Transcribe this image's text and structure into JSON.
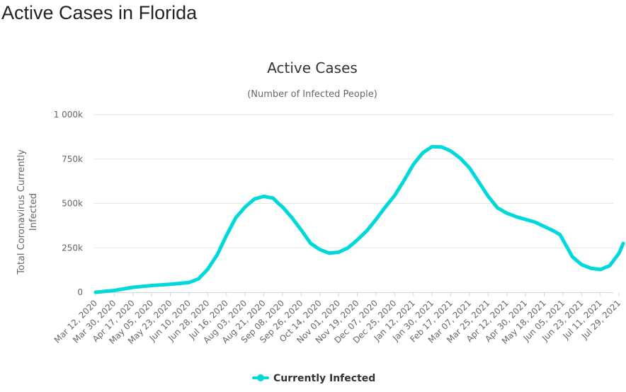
{
  "page": {
    "heading": "Active Cases in Florida"
  },
  "colors": {
    "series": "#00d9d9",
    "grid": "#e6e6e6",
    "axis_line": "#ccd6eb",
    "text": "#333333",
    "tick_text": "#666666"
  },
  "chart_data": {
    "type": "line",
    "title": "Active Cases",
    "subtitle": "(Number of Infected People)",
    "ylabel": "Total Coronavirus Currently Infected",
    "xlabel": "",
    "ylim": [
      0,
      1000000
    ],
    "yticks": [
      0,
      250000,
      500000,
      750000,
      1000000
    ],
    "ytick_labels": [
      "0",
      "250k",
      "500k",
      "750k",
      "1 000k"
    ],
    "x_tick_labels": [
      "Mar 12, 2020",
      "Mar 30, 2020",
      "Apr 17, 2020",
      "May 05, 2020",
      "May 23, 2020",
      "Jun 10, 2020",
      "Jun 28, 2020",
      "Jul 16, 2020",
      "Aug 03, 2020",
      "Aug 21, 2020",
      "Sep 08, 2020",
      "Sep 26, 2020",
      "Oct 14, 2020",
      "Nov 01, 2020",
      "Nov 19, 2020",
      "Dec 07, 2020",
      "Dec 25, 2020",
      "Jan 12, 2021",
      "Jan 30, 2021",
      "Feb 17, 2021",
      "Mar 07, 2021",
      "Mar 25, 2021",
      "Apr 12, 2021",
      "Apr 30, 2021",
      "May 18, 2021",
      "Jun 05, 2021",
      "Jun 23, 2021",
      "Jul 11, 2021",
      "Jul 29, 2021"
    ],
    "grid": true,
    "legend": "bottom-center",
    "series": [
      {
        "name": "Currently Infected",
        "x": [
          "Mar 12, 2020",
          "Mar 30, 2020",
          "Apr 17, 2020",
          "May 05, 2020",
          "May 23, 2020",
          "Jun 10, 2020",
          "Jun 19, 2020",
          "Jun 28, 2020",
          "Jul 07, 2020",
          "Jul 16, 2020",
          "Jul 25, 2020",
          "Aug 03, 2020",
          "Aug 12, 2020",
          "Aug 21, 2020",
          "Aug 30, 2020",
          "Sep 04, 2020",
          "Sep 08, 2020",
          "Sep 17, 2020",
          "Sep 26, 2020",
          "Oct 05, 2020",
          "Oct 14, 2020",
          "Oct 23, 2020",
          "Nov 01, 2020",
          "Nov 10, 2020",
          "Nov 19, 2020",
          "Nov 28, 2020",
          "Dec 07, 2020",
          "Dec 16, 2020",
          "Dec 25, 2020",
          "Jan 03, 2021",
          "Jan 12, 2021",
          "Jan 21, 2021",
          "Jan 30, 2021",
          "Feb 08, 2021",
          "Feb 17, 2021",
          "Feb 26, 2021",
          "Mar 07, 2021",
          "Mar 16, 2021",
          "Mar 25, 2021",
          "Apr 03, 2021",
          "Apr 12, 2021",
          "Apr 21, 2021",
          "Apr 30, 2021",
          "May 09, 2021",
          "May 18, 2021",
          "May 27, 2021",
          "Jun 02, 2021",
          "Jun 04, 2021",
          "Jun 14, 2021",
          "Jun 23, 2021",
          "Jul 02, 2021",
          "Jul 11, 2021",
          "Jul 20, 2021",
          "Jul 29, 2021",
          "Aug 02, 2021"
        ],
        "y": [
          0,
          10000,
          28000,
          38000,
          45000,
          55000,
          75000,
          130000,
          210000,
          320000,
          420000,
          480000,
          525000,
          540000,
          530000,
          500000,
          480000,
          420000,
          350000,
          275000,
          240000,
          220000,
          225000,
          250000,
          295000,
          345000,
          410000,
          480000,
          545000,
          630000,
          720000,
          785000,
          820000,
          818000,
          795000,
          755000,
          700000,
          620000,
          540000,
          475000,
          445000,
          425000,
          410000,
          395000,
          370000,
          345000,
          325000,
          305000,
          200000,
          155000,
          135000,
          128000,
          150000,
          220000,
          275000
        ]
      }
    ]
  }
}
